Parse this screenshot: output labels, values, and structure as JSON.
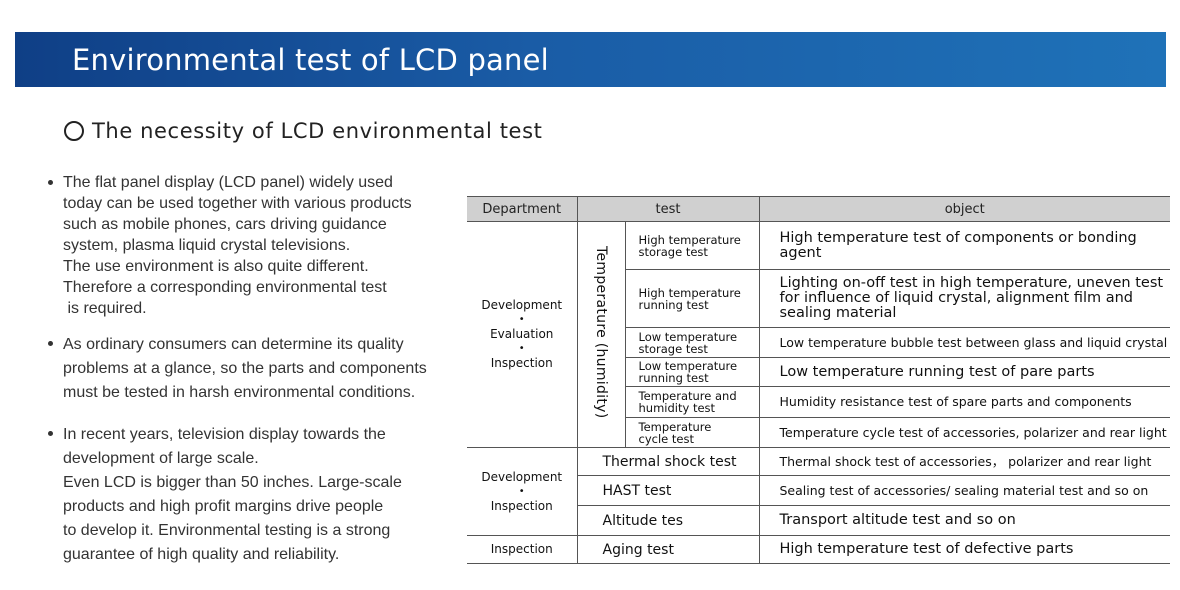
{
  "banner": {
    "title": "Environmental test of LCD panel"
  },
  "section": {
    "title": "The necessity of LCD environmental test"
  },
  "bullets": [
    {
      "lines": [
        "The flat panel display (LCD panel) widely used",
        "today can be used together with various products",
        "such as mobile phones, cars driving guidance",
        "system, plasma liquid crystal televisions.",
        "The use environment is also quite different.",
        "Therefore a corresponding environmental test",
        " is required."
      ]
    },
    {
      "lines": [
        "As ordinary consumers can determine its quality",
        "problems at a glance, so the parts and components",
        "must be tested in harsh environmental conditions."
      ]
    },
    {
      "lines": [
        "In recent years, television display towards the",
        "development of large scale.",
        "Even LCD is bigger than 50 inches. Large-scale",
        "products and high profit margins drive people",
        "to develop it. Environmental testing is a strong",
        "guarantee of high quality and reliability."
      ]
    }
  ],
  "table": {
    "headers": {
      "department": "Department",
      "test": "test",
      "object": "object"
    },
    "groups": [
      {
        "department": [
          "Development",
          "•",
          "Evaluation",
          "•",
          "Inspection"
        ],
        "category": "Temperature (humidity)",
        "rows": [
          {
            "test": [
              "High temperature",
              "storage test"
            ],
            "object": [
              "High temperature test of components or bonding",
              "agent"
            ],
            "size": "big"
          },
          {
            "test": [
              "High temperature",
              "running test"
            ],
            "object": [
              "Lighting on-off test in high temperature, uneven test",
              "for influence of liquid crystal, alignment film and",
              "sealing material"
            ],
            "size": "big"
          },
          {
            "test": [
              "Low temperature",
              "storage test"
            ],
            "object": [
              "Low temperature bubble test between glass and liquid crystal"
            ],
            "size": "small"
          },
          {
            "test": [
              "Low temperature",
              "running test"
            ],
            "object": [
              "Low temperature running test of pare parts"
            ],
            "size": "big"
          },
          {
            "test": [
              "Temperature and",
              "humidity test"
            ],
            "object": [
              "Humidity resistance test of spare parts and components"
            ],
            "size": "small"
          },
          {
            "test": [
              "Temperature",
              "cycle test"
            ],
            "object": [
              "Temperature cycle test of accessories, polarizer and  rear light"
            ],
            "size": "small"
          }
        ]
      },
      {
        "department": [
          "Development",
          "•",
          "Inspection"
        ],
        "rows": [
          {
            "test": "Thermal shock test",
            "object": "Thermal shock test of accessories， polarizer and rear light",
            "size": "small"
          },
          {
            "test": "HAST test",
            "object": "Sealing test of accessories/ sealing material test and so on",
            "size": "small"
          },
          {
            "test": "Altitude tes",
            "object": "Transport altitude test and so on",
            "size": "big"
          }
        ]
      },
      {
        "department": [
          "Inspection"
        ],
        "rows": [
          {
            "test": "Aging test",
            "object": "High temperature test of defective parts",
            "size": "big"
          }
        ]
      }
    ]
  }
}
